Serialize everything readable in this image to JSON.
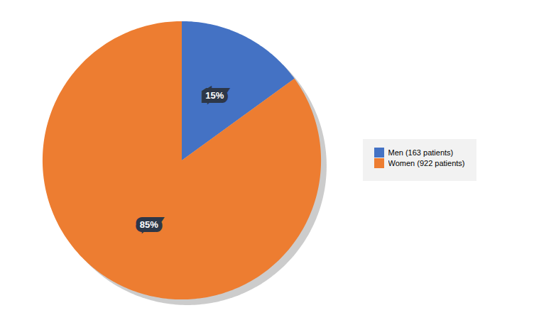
{
  "chart_data": {
    "type": "pie",
    "categories": [
      "Men (163 patients)",
      "Women (922 patients)"
    ],
    "values": [
      15,
      85
    ],
    "value_labels": [
      "15%",
      "85%"
    ],
    "colors": [
      "#4472C4",
      "#ED7D31"
    ],
    "data_labels": true,
    "legend": "right"
  }
}
